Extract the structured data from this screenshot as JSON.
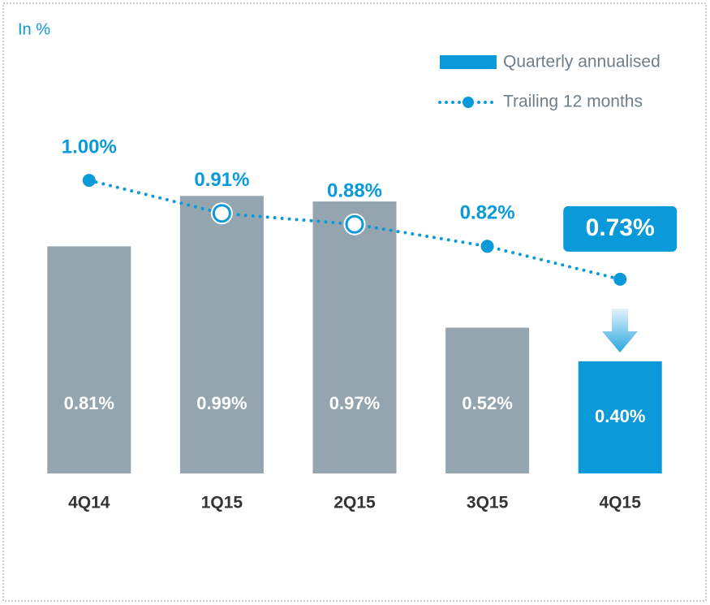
{
  "chart_data": {
    "type": "bar",
    "subtitle": "In %",
    "categories": [
      "4Q14",
      "1Q15",
      "2Q15",
      "3Q15",
      "4Q15"
    ],
    "ylim": [
      0,
      1.15
    ],
    "y2lim": [
      0.2,
      1.08
    ],
    "series": [
      {
        "name": "Quarterly annualised",
        "type": "bar",
        "color": "#0a9ad9",
        "colors": [
          "#94a5af",
          "#94a5af",
          "#94a5af",
          "#94a5af",
          "#0a9ad9"
        ],
        "values": [
          0.81,
          0.99,
          0.97,
          0.52,
          0.4
        ],
        "value_labels": [
          "0.81%",
          "0.99%",
          "0.97%",
          "0.52%",
          "0.40%"
        ]
      },
      {
        "name": "Trailing 12 months",
        "type": "line",
        "axis": "y2",
        "color": "#0a9ad9",
        "values": [
          1.0,
          0.91,
          0.88,
          0.82,
          0.73
        ],
        "value_labels": [
          "1.00%",
          "0.91%",
          "0.88%",
          "0.82%",
          "0.73%"
        ]
      }
    ]
  }
}
